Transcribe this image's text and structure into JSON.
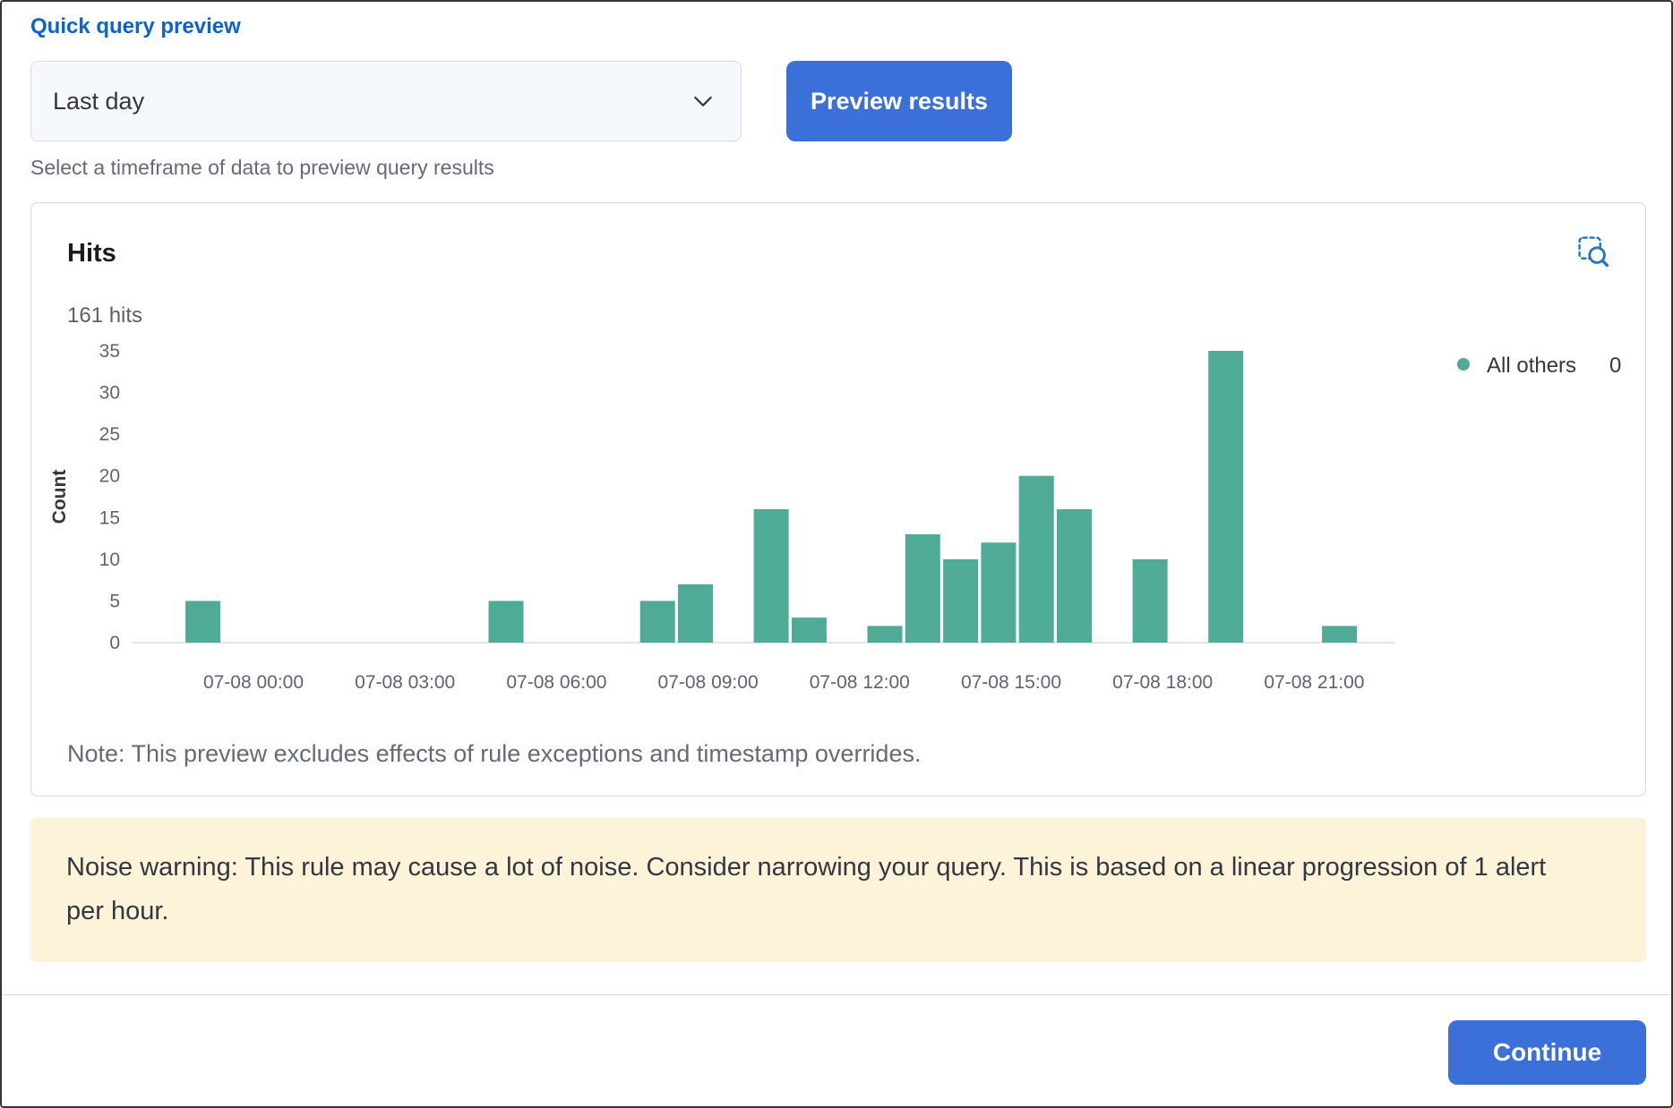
{
  "colors": {
    "link": "#0b63d2",
    "button_bg": "#3b70d9",
    "button_text": "#ffffff",
    "bar": "#4fab96",
    "warning_bg": "#fdf3d8",
    "border": "#d3dae6",
    "text": "#343741",
    "subdued": "#646a77",
    "inspect_icon": "#1f74c8"
  },
  "header": {
    "link_label": "Quick query preview"
  },
  "timeframe": {
    "value": "Last day",
    "helper": "Select a timeframe of data to preview query results"
  },
  "buttons": {
    "preview": "Preview results",
    "continue": "Continue"
  },
  "panel": {
    "note": "Note: This preview excludes effects of rule exceptions and timestamp overrides.",
    "inspect_icon": "inspect-icon"
  },
  "warning": {
    "text": "Noise warning: This rule may cause a lot of noise. Consider narrowing your query. This is based on a linear progression of 1 alert per hour."
  },
  "chart_data": {
    "type": "bar",
    "title": "Hits",
    "total_label": "161 hits",
    "total_hits": 161,
    "ylabel": "Count",
    "ylim": [
      0,
      35
    ],
    "y_ticks": [
      0,
      5,
      10,
      15,
      20,
      25,
      30,
      35
    ],
    "x_domain_hours": [
      -2.4,
      22.6
    ],
    "bucket_minutes": 45,
    "grid": false,
    "legend_position": "right",
    "x_ticks": [
      {
        "hour": 0,
        "label": "07-08 00:00"
      },
      {
        "hour": 3,
        "label": "07-08 03:00"
      },
      {
        "hour": 6,
        "label": "07-08 06:00"
      },
      {
        "hour": 9,
        "label": "07-08 09:00"
      },
      {
        "hour": 12,
        "label": "07-08 12:00"
      },
      {
        "hour": 15,
        "label": "07-08 15:00"
      },
      {
        "hour": 18,
        "label": "07-08 18:00"
      },
      {
        "hour": 21,
        "label": "07-08 21:00"
      }
    ],
    "bars": [
      {
        "time": "07-07 23:00",
        "hour": -1.0,
        "count": 5
      },
      {
        "time": "07-08 05:00",
        "hour": 5.0,
        "count": 5
      },
      {
        "time": "07-08 08:00",
        "hour": 8.0,
        "count": 5
      },
      {
        "time": "07-08 08:45",
        "hour": 8.75,
        "count": 7
      },
      {
        "time": "07-08 10:15",
        "hour": 10.25,
        "count": 16
      },
      {
        "time": "07-08 11:00",
        "hour": 11.0,
        "count": 3
      },
      {
        "time": "07-08 12:30",
        "hour": 12.5,
        "count": 2
      },
      {
        "time": "07-08 13:15",
        "hour": 13.25,
        "count": 13
      },
      {
        "time": "07-08 14:00",
        "hour": 14.0,
        "count": 10
      },
      {
        "time": "07-08 14:45",
        "hour": 14.75,
        "count": 12
      },
      {
        "time": "07-08 15:30",
        "hour": 15.5,
        "count": 20
      },
      {
        "time": "07-08 16:15",
        "hour": 16.25,
        "count": 16
      },
      {
        "time": "07-08 17:45",
        "hour": 17.75,
        "count": 10
      },
      {
        "time": "07-08 19:15",
        "hour": 19.25,
        "count": 35
      },
      {
        "time": "07-08 21:30",
        "hour": 21.5,
        "count": 2
      }
    ],
    "legend": [
      {
        "label": "All others",
        "value": 0,
        "color": "#4fab96"
      }
    ],
    "bar_color": "#4fab96"
  }
}
